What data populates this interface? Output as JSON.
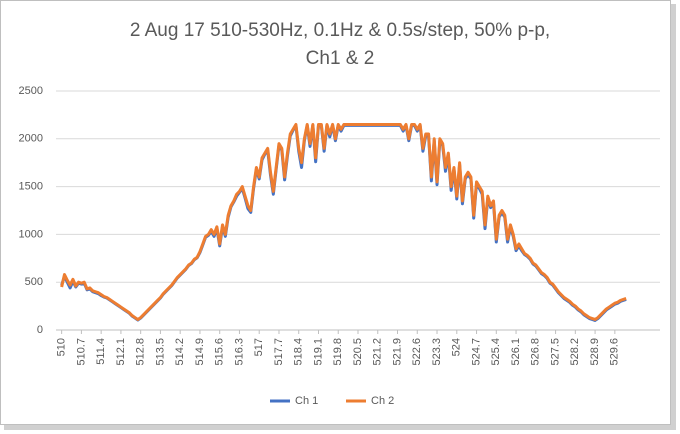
{
  "chart_data": {
    "type": "line",
    "title": [
      "2 Aug 17 510-530Hz, 0.1Hz & 0.5s/step, 50% p-p,",
      "Ch1 & 2"
    ],
    "x": [
      510,
      510.1,
      510.2,
      510.3,
      510.4,
      510.5,
      510.6,
      510.7,
      510.8,
      510.9,
      511,
      511.1,
      511.2,
      511.3,
      511.4,
      511.5,
      511.6,
      511.7,
      511.8,
      511.9,
      512,
      512.1,
      512.2,
      512.3,
      512.4,
      512.5,
      512.6,
      512.7,
      512.8,
      512.9,
      513,
      513.1,
      513.2,
      513.3,
      513.4,
      513.5,
      513.6,
      513.7,
      513.8,
      513.9,
      514,
      514.1,
      514.2,
      514.3,
      514.4,
      514.5,
      514.6,
      514.7,
      514.8,
      514.9,
      515,
      515.1,
      515.2,
      515.3,
      515.4,
      515.5,
      515.6,
      515.7,
      515.8,
      515.9,
      516,
      516.1,
      516.2,
      516.3,
      516.4,
      516.5,
      516.6,
      516.7,
      516.8,
      516.9,
      517,
      517.1,
      517.2,
      517.3,
      517.4,
      517.5,
      517.6,
      517.7,
      517.8,
      517.9,
      518,
      518.1,
      518.2,
      518.3,
      518.4,
      518.5,
      518.6,
      518.7,
      518.8,
      518.9,
      519,
      519.1,
      519.2,
      519.3,
      519.4,
      519.5,
      519.6,
      519.7,
      519.8,
      519.9,
      520,
      520.1,
      520.2,
      520.3,
      520.4,
      520.5,
      520.6,
      520.7,
      520.8,
      520.9,
      521,
      521.1,
      521.2,
      521.3,
      521.4,
      521.5,
      521.6,
      521.7,
      521.8,
      521.9,
      522,
      522.1,
      522.2,
      522.3,
      522.4,
      522.5,
      522.6,
      522.7,
      522.8,
      522.9,
      523,
      523.1,
      523.2,
      523.3,
      523.4,
      523.5,
      523.6,
      523.7,
      523.8,
      523.9,
      524,
      524.1,
      524.2,
      524.3,
      524.4,
      524.5,
      524.6,
      524.7,
      524.8,
      524.9,
      525,
      525.1,
      525.2,
      525.3,
      525.4,
      525.5,
      525.6,
      525.7,
      525.8,
      525.9,
      526,
      526.1,
      526.2,
      526.3,
      526.4,
      526.5,
      526.6,
      526.7,
      526.8,
      526.9,
      527,
      527.1,
      527.2,
      527.3,
      527.4,
      527.5,
      527.6,
      527.7,
      527.8,
      527.9,
      528,
      528.1,
      528.2,
      528.3,
      528.4,
      528.5,
      528.6,
      528.7,
      528.8,
      528.9,
      529,
      529.1,
      529.2,
      529.3,
      529.4,
      529.5,
      529.6,
      529.7,
      529.8,
      529.9,
      530
    ],
    "series": [
      {
        "name": "Ch 1",
        "color": "#4472c4",
        "values": [
          470,
          560,
          500,
          440,
          510,
          450,
          490,
          480,
          490,
          420,
          430,
          400,
          390,
          380,
          360,
          345,
          335,
          315,
          295,
          275,
          255,
          235,
          215,
          195,
          175,
          145,
          125,
          105,
          125,
          155,
          185,
          215,
          245,
          275,
          305,
          335,
          375,
          405,
          435,
          465,
          505,
          545,
          575,
          605,
          635,
          675,
          695,
          735,
          755,
          810,
          890,
          970,
          990,
          1030,
          980,
          1060,
          880,
          1080,
          980,
          1180,
          1290,
          1340,
          1400,
          1440,
          1480,
          1380,
          1270,
          1230,
          1480,
          1680,
          1580,
          1780,
          1840,
          1880,
          1620,
          1420,
          1680,
          1930,
          1880,
          1570,
          1820,
          2030,
          2090,
          2140,
          1870,
          1700,
          1980,
          2140,
          1920,
          2140,
          1760,
          2140,
          2140,
          1870,
          2140,
          2020,
          2140,
          1980,
          2140,
          2080,
          2140,
          2140,
          2140,
          2140,
          2140,
          2140,
          2140,
          2140,
          2140,
          2140,
          2140,
          2140,
          2140,
          2140,
          2140,
          2140,
          2140,
          2140,
          2140,
          2140,
          2140,
          2080,
          2140,
          1980,
          2140,
          2140,
          2080,
          2140,
          1870,
          2030,
          2030,
          1560,
          1980,
          1520,
          1980,
          1930,
          1660,
          1830,
          1460,
          1680,
          1370,
          1730,
          1320,
          1580,
          1630,
          1580,
          1170,
          1530,
          1480,
          1420,
          1060,
          1380,
          1280,
          1330,
          920,
          1180,
          1230,
          1180,
          920,
          1080,
          980,
          830,
          880,
          830,
          790,
          770,
          740,
          690,
          670,
          630,
          590,
          570,
          540,
          490,
          470,
          430,
          390,
          360,
          330,
          310,
          290,
          260,
          240,
          210,
          190,
          160,
          140,
          120,
          110,
          100,
          120,
          150,
          180,
          210,
          230,
          250,
          270,
          280,
          300,
          310,
          320
        ]
      },
      {
        "name": "Ch 2",
        "color": "#ed7d31",
        "values": [
          450,
          580,
          520,
          470,
          530,
          460,
          500,
          490,
          500,
          430,
          440,
          410,
          400,
          390,
          370,
          350,
          340,
          320,
          300,
          280,
          260,
          240,
          220,
          200,
          180,
          150,
          130,
          110,
          130,
          160,
          190,
          220,
          250,
          280,
          310,
          340,
          380,
          410,
          440,
          470,
          510,
          550,
          580,
          610,
          640,
          680,
          700,
          740,
          760,
          820,
          900,
          980,
          1000,
          1050,
          1000,
          1080,
          900,
          1100,
          1000,
          1200,
          1300,
          1350,
          1420,
          1450,
          1500,
          1400,
          1300,
          1250,
          1500,
          1700,
          1600,
          1800,
          1850,
          1900,
          1650,
          1450,
          1700,
          1950,
          1900,
          1600,
          1850,
          2050,
          2100,
          2150,
          1900,
          1750,
          2000,
          2150,
          1950,
          2150,
          1800,
          2150,
          2150,
          1900,
          2150,
          2050,
          2150,
          2000,
          2150,
          2100,
          2150,
          2150,
          2150,
          2150,
          2150,
          2150,
          2150,
          2150,
          2150,
          2150,
          2150,
          2150,
          2150,
          2150,
          2150,
          2150,
          2150,
          2150,
          2150,
          2150,
          2150,
          2100,
          2150,
          2000,
          2150,
          2150,
          2100,
          2150,
          1900,
          2050,
          2050,
          1600,
          2000,
          1550,
          2000,
          1950,
          1700,
          1850,
          1500,
          1700,
          1400,
          1750,
          1350,
          1600,
          1650,
          1600,
          1200,
          1550,
          1500,
          1450,
          1100,
          1400,
          1300,
          1350,
          950,
          1200,
          1250,
          1200,
          950,
          1100,
          1000,
          850,
          900,
          850,
          800,
          780,
          750,
          700,
          680,
          640,
          600,
          580,
          550,
          500,
          480,
          440,
          400,
          370,
          340,
          320,
          300,
          270,
          250,
          220,
          200,
          170,
          150,
          130,
          120,
          110,
          130,
          160,
          190,
          220,
          240,
          260,
          280,
          290,
          310,
          320,
          330
        ]
      }
    ],
    "xlim": [
      509.8,
      531.2
    ],
    "xticks": [
      510,
      510.7,
      511.4,
      512.1,
      512.8,
      513.5,
      514.2,
      514.9,
      515.6,
      516.3,
      517,
      517.7,
      518.4,
      519.1,
      519.8,
      520.5,
      521.2,
      521.9,
      522.6,
      523.3,
      524,
      524.7,
      525.4,
      526.1,
      526.8,
      527.5,
      528.2,
      528.9,
      529.6
    ],
    "ylim": [
      0,
      2500
    ],
    "yticks": [
      0,
      500,
      1000,
      1500,
      2000,
      2500
    ],
    "grid": true,
    "legend": "bottom"
  }
}
